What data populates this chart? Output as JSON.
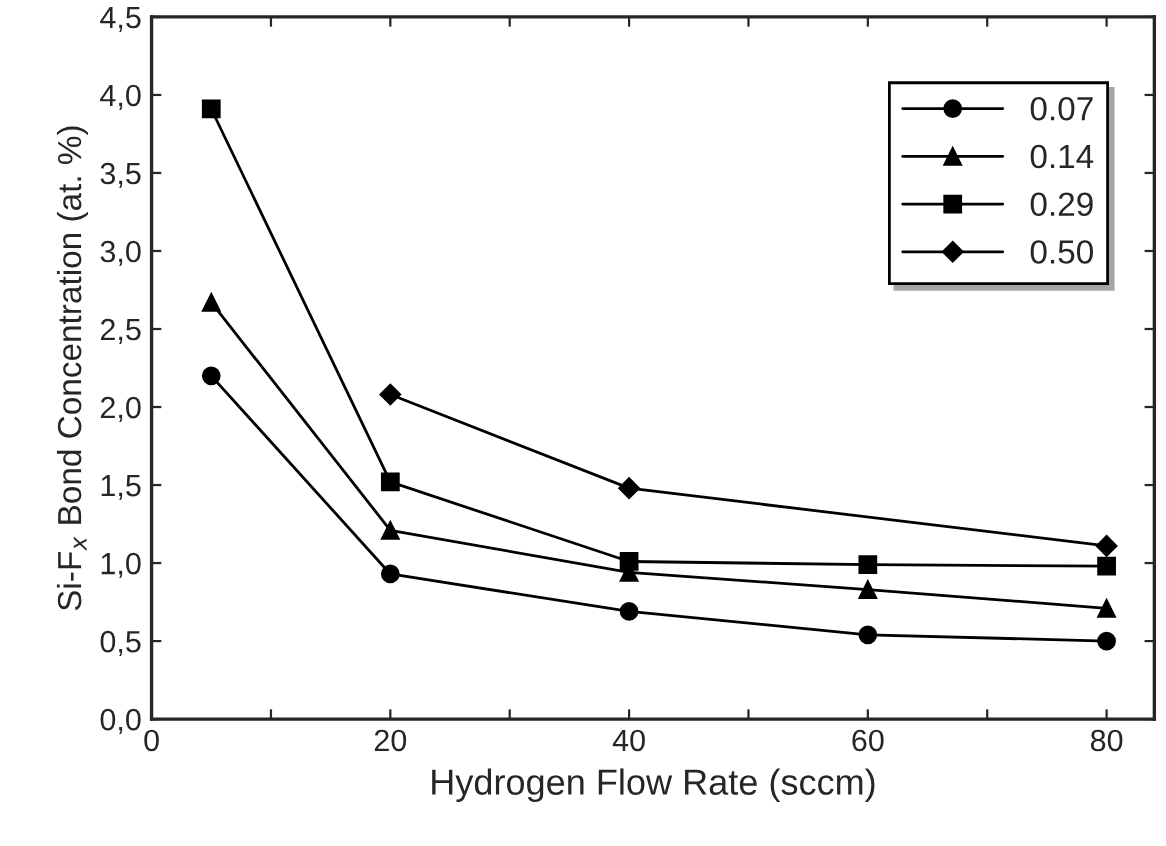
{
  "chart_data": {
    "type": "line",
    "xlabel": "Hydrogen Flow Rate (sccm)",
    "ylabel": "Si-F$_{x}$ Bond Concentration (at. %)",
    "series": [
      {
        "name": "0.07",
        "color": "#000000",
        "marker": "circle",
        "x": [
          5,
          20,
          40,
          60,
          80
        ],
        "values": [
          2.2,
          0.93,
          0.69,
          0.54,
          0.5
        ]
      },
      {
        "name": "0.14",
        "color": "#000000",
        "marker": "triangle",
        "x": [
          5,
          20,
          40,
          60,
          80
        ],
        "values": [
          2.67,
          1.21,
          0.94,
          0.83,
          0.71
        ]
      },
      {
        "name": "0.29",
        "color": "#000000",
        "marker": "square",
        "x": [
          5,
          20,
          40,
          60,
          80
        ],
        "values": [
          3.91,
          1.52,
          1.01,
          0.99,
          0.98
        ]
      },
      {
        "name": "0.50",
        "color": "#000000",
        "marker": "diamond",
        "x": [
          20,
          40,
          80
        ],
        "values": [
          2.08,
          1.48,
          1.11
        ]
      }
    ],
    "xlim": [
      0,
      84
    ],
    "ylim": [
      0,
      4.5
    ],
    "xticks": [
      0,
      {
        "value": 10,
        "label": null
      },
      20,
      {
        "value": 30,
        "label": null
      },
      40,
      {
        "value": 50,
        "label": null
      },
      60,
      {
        "value": 70,
        "label": null
      },
      80
    ],
    "yticks": [
      {
        "value": 0,
        "label": "0,0"
      },
      {
        "value": 0.5,
        "label": "0,5"
      },
      {
        "value": 1,
        "label": "1,0"
      },
      {
        "value": 1.5,
        "label": "1,5"
      },
      {
        "value": 2,
        "label": "2,0"
      },
      {
        "value": 2.5,
        "label": "2,5"
      },
      {
        "value": 3,
        "label": "3,0"
      },
      {
        "value": 3.5,
        "label": "3,5"
      },
      {
        "value": 4,
        "label": "4,0"
      },
      {
        "value": 4.5,
        "label": "4,5"
      }
    ],
    "grid": false,
    "legend": "top right",
    "line_style": "solid"
  }
}
